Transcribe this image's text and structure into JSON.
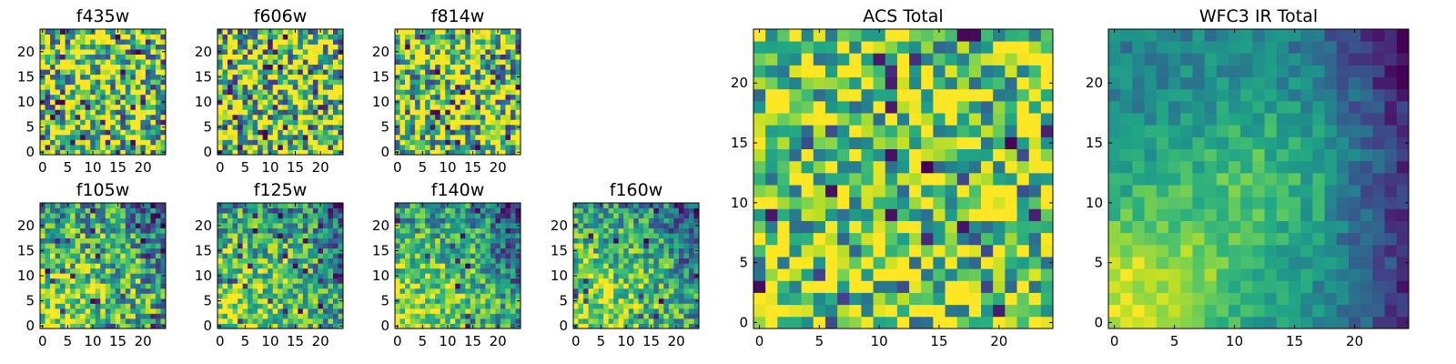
{
  "chart_data": {
    "type": "heatmap",
    "colormap": "viridis",
    "grid_size": [
      25,
      25
    ],
    "value_range": [
      0,
      1
    ],
    "panels": [
      {
        "id": "f435w",
        "title": "f435w",
        "xticks": [
          "0",
          "5",
          "10",
          "15",
          "20"
        ],
        "yticks": [
          "0",
          "5",
          "10",
          "15",
          "20"
        ],
        "xlim": [
          -0.5,
          24.5
        ],
        "ylim": [
          -0.5,
          24.5
        ],
        "pattern": "noise",
        "seed": 11,
        "noise_amplitude": 0.55,
        "dark_pixel_fraction": 0.08
      },
      {
        "id": "f606w",
        "title": "f606w",
        "xticks": [
          "0",
          "5",
          "10",
          "15",
          "20"
        ],
        "yticks": [
          "0",
          "5",
          "10",
          "15",
          "20"
        ],
        "xlim": [
          -0.5,
          24.5
        ],
        "ylim": [
          -0.5,
          24.5
        ],
        "pattern": "noise",
        "seed": 23,
        "noise_amplitude": 0.55,
        "dark_pixel_fraction": 0.08
      },
      {
        "id": "f814w",
        "title": "f814w",
        "xticks": [
          "0",
          "5",
          "10",
          "15",
          "20"
        ],
        "yticks": [
          "0",
          "5",
          "10",
          "15",
          "20"
        ],
        "xlim": [
          -0.5,
          24.5
        ],
        "ylim": [
          -0.5,
          24.5
        ],
        "pattern": "noise",
        "seed": 37,
        "noise_amplitude": 0.55,
        "dark_pixel_fraction": 0.08
      },
      {
        "id": "f105w",
        "title": "f105w",
        "xticks": [
          "0",
          "5",
          "10",
          "15",
          "20"
        ],
        "yticks": [
          "0",
          "5",
          "10",
          "15",
          "20"
        ],
        "xlim": [
          -0.5,
          24.5
        ],
        "ylim": [
          -0.5,
          24.5
        ],
        "pattern": "source",
        "seed": 41,
        "noise_amplitude": 0.38,
        "dark_pixel_fraction": 0.04
      },
      {
        "id": "f125w",
        "title": "f125w",
        "xticks": [
          "0",
          "5",
          "10",
          "15",
          "20"
        ],
        "yticks": [
          "0",
          "5",
          "10",
          "15",
          "20"
        ],
        "xlim": [
          -0.5,
          24.5
        ],
        "ylim": [
          -0.5,
          24.5
        ],
        "pattern": "source",
        "seed": 53,
        "noise_amplitude": 0.34,
        "dark_pixel_fraction": 0.04
      },
      {
        "id": "f140w",
        "title": "f140w",
        "xticks": [
          "0",
          "5",
          "10",
          "15",
          "20"
        ],
        "yticks": [
          "0",
          "5",
          "10",
          "15",
          "20"
        ],
        "xlim": [
          -0.5,
          24.5
        ],
        "ylim": [
          -0.5,
          24.5
        ],
        "pattern": "source",
        "seed": 67,
        "noise_amplitude": 0.3,
        "dark_pixel_fraction": 0.02
      },
      {
        "id": "f160w",
        "title": "f160w",
        "xticks": [
          "0",
          "5",
          "10",
          "15",
          "20"
        ],
        "yticks": [
          "0",
          "5",
          "10",
          "15",
          "20"
        ],
        "xlim": [
          -0.5,
          24.5
        ],
        "ylim": [
          -0.5,
          24.5
        ],
        "pattern": "source",
        "seed": 79,
        "noise_amplitude": 0.3,
        "dark_pixel_fraction": 0.03
      },
      {
        "id": "acs-total",
        "title": "ACS Total",
        "xticks": [
          "0",
          "5",
          "10",
          "15",
          "20"
        ],
        "yticks": [
          "0",
          "5",
          "10",
          "15",
          "20"
        ],
        "xlim": [
          -0.5,
          24.5
        ],
        "ylim": [
          -0.5,
          24.5
        ],
        "pattern": "noise",
        "seed": 97,
        "noise_amplitude": 0.45,
        "dark_pixel_fraction": 0.05
      },
      {
        "id": "wfc3-ir-total",
        "title": "WFC3 IR Total",
        "xticks": [
          "0",
          "5",
          "10",
          "15",
          "20"
        ],
        "yticks": [
          "0",
          "5",
          "10",
          "15",
          "20"
        ],
        "xlim": [
          -0.5,
          24.5
        ],
        "ylim": [
          -0.5,
          24.5
        ],
        "pattern": "smooth-source",
        "seed": 101,
        "noise_amplitude": 0.12,
        "dark_pixel_fraction": 0.0
      }
    ]
  }
}
